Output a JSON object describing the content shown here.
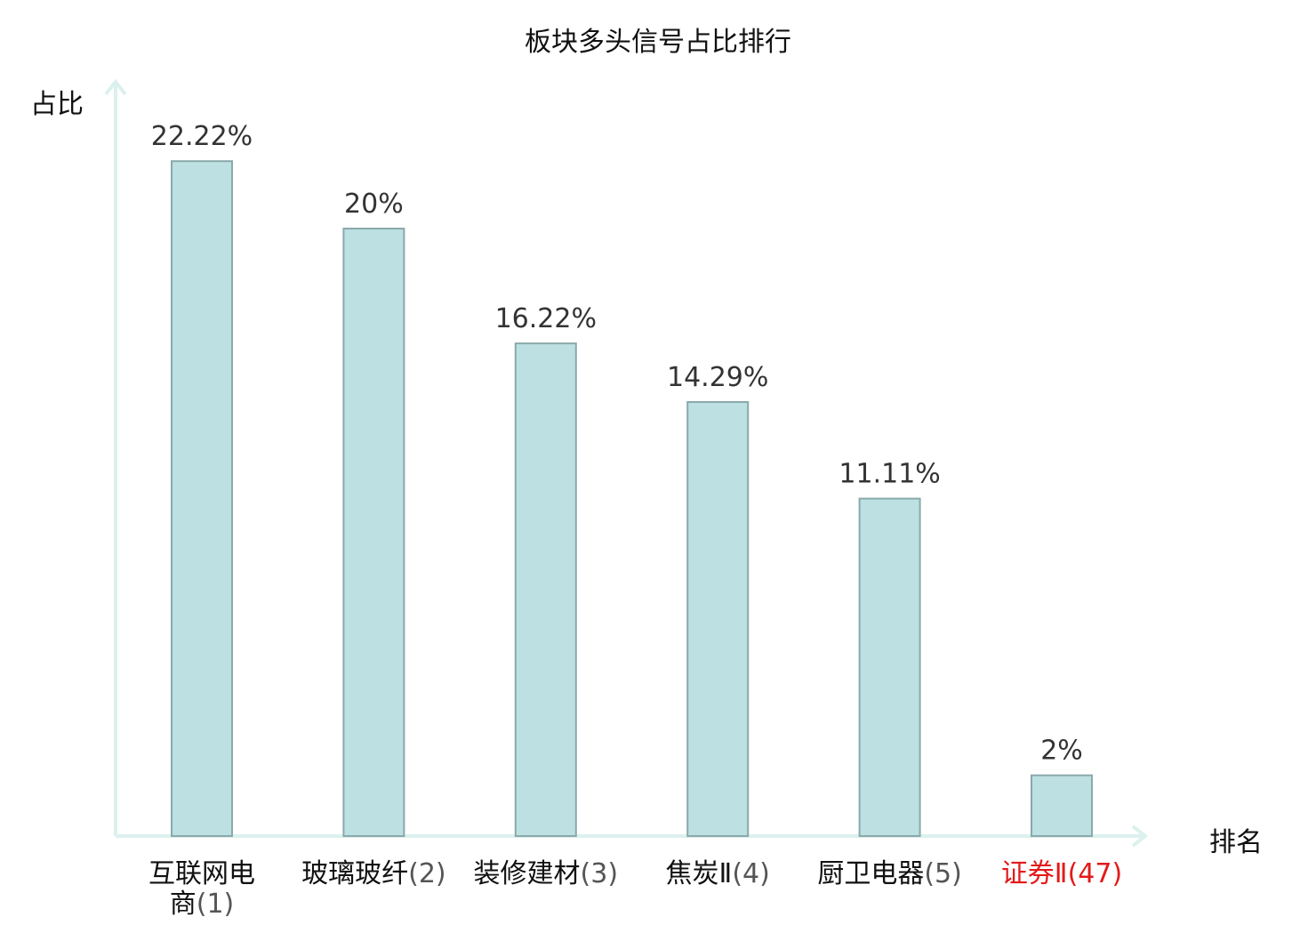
{
  "chart_data": {
    "type": "bar",
    "title": "板块多头信号占比排行",
    "ylabel": "占比",
    "xlabel": "排名",
    "ylim": [
      0,
      25
    ],
    "grid": false,
    "categories": [
      {
        "name": "互联网电商",
        "rank": "(1)",
        "line1": "互联网电",
        "line2": "商",
        "highlight": false
      },
      {
        "name": "玻璃玻纤",
        "rank": "(2)",
        "line1": "玻璃玻纤",
        "line2": "",
        "highlight": false
      },
      {
        "name": "装修建材",
        "rank": "(3)",
        "line1": "装修建材",
        "line2": "",
        "highlight": false
      },
      {
        "name": "焦炭Ⅱ",
        "rank": "(4)",
        "line1": "焦炭Ⅱ",
        "line2": "",
        "highlight": false
      },
      {
        "name": "厨卫电器",
        "rank": "(5)",
        "line1": "厨卫电器",
        "line2": "",
        "highlight": false
      },
      {
        "name": "证券Ⅱ",
        "rank": "(47)",
        "line1": "证券Ⅱ",
        "line2": "",
        "highlight": true
      }
    ],
    "values": [
      22.22,
      20,
      16.22,
      14.29,
      11.11,
      2
    ],
    "value_labels": [
      "22.22%",
      "20%",
      "16.22%",
      "14.29%",
      "11.11%",
      "2%"
    ],
    "colors": {
      "bar_fill": "#bde0e3",
      "bar_stroke": "#8aa9ab",
      "axis": "#dcf1ee",
      "highlight": "#e31a1a"
    }
  }
}
